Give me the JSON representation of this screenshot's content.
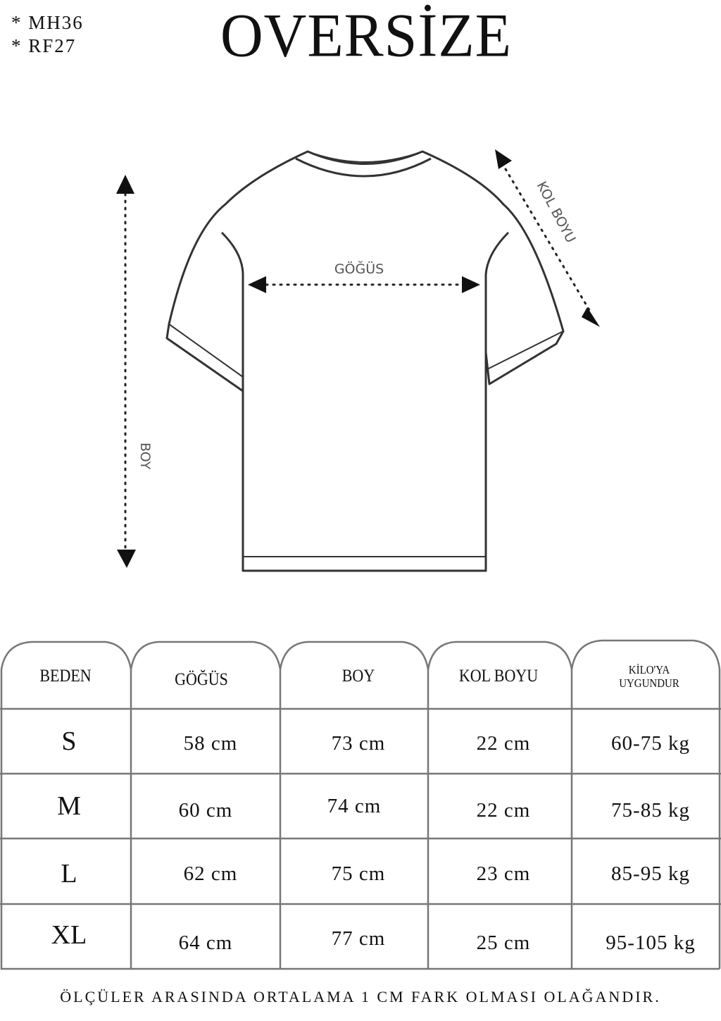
{
  "codes": [
    "* MH36",
    "* RF27"
  ],
  "title": "OVERSİZE",
  "diagram": {
    "chest_label": "GÖĞÜS",
    "sleeve_label": "KOL BOYU",
    "length_label": "BOY"
  },
  "table": {
    "headers": [
      "BEDEN",
      "GÖĞÜS",
      "BOY",
      "KOL BOYU",
      "KİLO'YA UYGUNDUR"
    ],
    "rows": [
      [
        "S",
        "58 cm",
        "73 cm",
        "22  cm",
        "60-75 kg"
      ],
      [
        "M",
        "60 cm",
        "74 cm",
        "22 cm",
        "75-85 kg"
      ],
      [
        "L",
        "62 cm",
        "75 cm",
        "23 cm",
        "85-95 kg"
      ],
      [
        "XL",
        "64 cm",
        "77 cm",
        "25 cm",
        "95-105 kg"
      ]
    ]
  },
  "footer": "ÖLÇÜLER ARASINDA ORTALAMA 1 CM FARK OLMASI OLAĞANDIR."
}
